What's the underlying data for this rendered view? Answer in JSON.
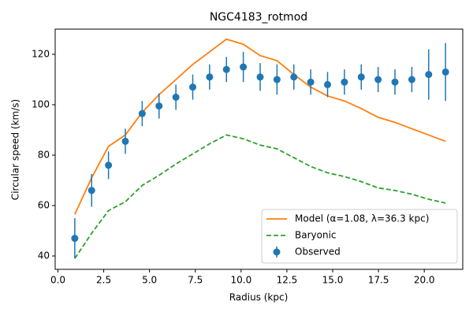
{
  "chart_data": {
    "type": "line",
    "title": "NGC4183_rotmod",
    "xlabel": "Radius (kpc)",
    "ylabel": "Circular speed (km/s)",
    "x": [
      0.92,
      1.84,
      2.76,
      3.68,
      4.6,
      5.52,
      6.44,
      7.36,
      8.28,
      9.2,
      10.12,
      11.04,
      11.96,
      12.88,
      13.8,
      14.72,
      15.64,
      16.56,
      17.48,
      18.4,
      19.32,
      20.24,
      21.16
    ],
    "series": [
      {
        "name": "Model (α=1.08, λ=36.3 kpc)",
        "color": "#ff7f0e",
        "style": "solid",
        "values": [
          56.5,
          71,
          83.5,
          88,
          97,
          104,
          110,
          116,
          121,
          126,
          124,
          119.5,
          117.5,
          112,
          107,
          103.5,
          101.5,
          98.5,
          95,
          93,
          90.5,
          88,
          85.5
        ]
      },
      {
        "name": "Baryonic",
        "color": "#2ca02c",
        "style": "dashed",
        "values": [
          39,
          49,
          58,
          61.5,
          68,
          72,
          76.5,
          80.5,
          84.5,
          88,
          86.5,
          84,
          82.5,
          79,
          75.5,
          73,
          71.5,
          69.5,
          67,
          66,
          64.5,
          62.5,
          61
        ]
      },
      {
        "name": "Observed",
        "color": "#1f77b4",
        "style": "errorbar",
        "values": [
          47,
          66,
          76,
          85.5,
          96.5,
          99.5,
          103,
          107,
          111,
          114,
          115,
          111,
          110,
          111,
          109,
          108,
          109,
          111,
          110,
          109,
          110,
          112,
          113
        ],
        "errors": [
          8,
          6.5,
          5.5,
          5,
          5,
          5,
          5,
          5,
          5,
          5,
          6,
          5.5,
          6,
          5,
          5,
          5,
          5,
          5,
          5,
          5,
          5,
          10,
          11.5
        ]
      }
    ],
    "xlim": [
      -0.15,
      22.1
    ],
    "ylim": [
      34.7,
      130
    ],
    "xticks": [
      {
        "value": 0,
        "label": "0.0"
      },
      2.5,
      {
        "value": 5,
        "label": "5.0"
      },
      7.5,
      {
        "value": 10,
        "label": "10.0"
      },
      12.5,
      {
        "value": 15,
        "label": "15.0"
      },
      17.5,
      {
        "value": 20,
        "label": "20.0"
      }
    ],
    "yticks": [
      40,
      60,
      80,
      100,
      120
    ],
    "legend": "lower right"
  }
}
